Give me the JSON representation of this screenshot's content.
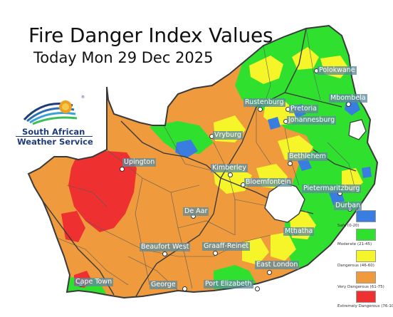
{
  "header": {
    "title": "Fire Danger Index Values",
    "subtitle": "Today Mon 29 Dec 2025"
  },
  "logo": {
    "line1": "South African",
    "line2": "Weather Service"
  },
  "cities": [
    {
      "name": "Polokwane"
    },
    {
      "name": "Mbombela"
    },
    {
      "name": "Rustenburg"
    },
    {
      "name": "Pretoria"
    },
    {
      "name": "Johannesburg"
    },
    {
      "name": "Vryburg"
    },
    {
      "name": "Bethlehem"
    },
    {
      "name": "Upington"
    },
    {
      "name": "Kimberley"
    },
    {
      "name": "Bloemfontein"
    },
    {
      "name": "Pietermaritzburg"
    },
    {
      "name": "Durban"
    },
    {
      "name": "De Aar"
    },
    {
      "name": "Mthatha"
    },
    {
      "name": "Beaufort West"
    },
    {
      "name": "Graaff-Reinet"
    },
    {
      "name": "East London"
    },
    {
      "name": "Cape Town"
    },
    {
      "name": "George"
    },
    {
      "name": "Port Elizabeth"
    }
  ],
  "legend": [
    {
      "label": "Safe (0-20)",
      "color": "#3a7de0"
    },
    {
      "label": "Moderate (21-45)",
      "color": "#2fe02f"
    },
    {
      "label": "Dangerous (46-60)",
      "color": "#f5f52a"
    },
    {
      "label": "Very Dangerous (61-75)",
      "color": "#ef9a3c"
    },
    {
      "label": "Extremely Dangerous (76-100)",
      "color": "#ee3030"
    }
  ],
  "colors": {
    "safe": "#3a7de0",
    "moderate": "#2fe02f",
    "dangerous": "#f5f52a",
    "very_dangerous": "#ef9a3c",
    "extremely_dangerous": "#ee3030",
    "border": "#3a3a3a"
  }
}
